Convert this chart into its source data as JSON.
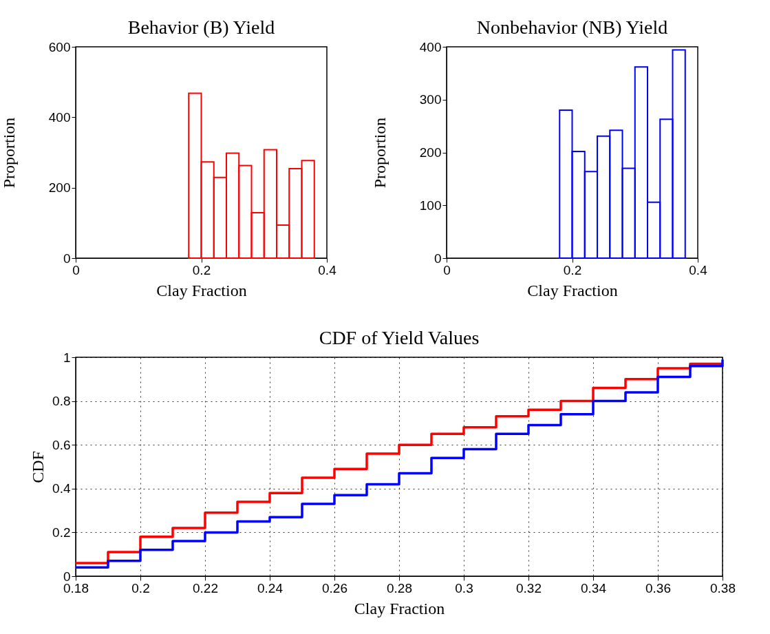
{
  "chart_data": [
    {
      "type": "histogram",
      "title": "Behavior (B) Yield",
      "xlabel": "Clay Fraction",
      "ylabel": "Proportion",
      "bins": [
        0.18,
        0.2,
        0.22,
        0.24,
        0.26,
        0.28,
        0.3,
        0.32,
        0.34,
        0.36,
        0.38
      ],
      "values": [
        468,
        273,
        229,
        298,
        263,
        129,
        308,
        94,
        254,
        277
      ],
      "color": "#ff0000",
      "xlim": [
        0,
        0.4
      ],
      "xticks": [
        0,
        0.2,
        0.4
      ],
      "ylim": [
        0,
        600
      ],
      "yticks": [
        0,
        200,
        400,
        600
      ],
      "grid": false
    },
    {
      "type": "histogram",
      "title": "Nonbehavior (NB) Yield",
      "xlabel": "Clay Fraction",
      "ylabel": "Proportion",
      "bins": [
        0.18,
        0.2,
        0.22,
        0.24,
        0.26,
        0.28,
        0.3,
        0.32,
        0.34,
        0.36,
        0.38
      ],
      "values": [
        280,
        202,
        164,
        231,
        242,
        170,
        362,
        106,
        263,
        394
      ],
      "color": "#0000ff",
      "xlim": [
        0,
        0.4
      ],
      "xticks": [
        0,
        0.2,
        0.4
      ],
      "ylim": [
        0,
        400
      ],
      "yticks": [
        0,
        100,
        200,
        300,
        400
      ],
      "grid": false
    },
    {
      "type": "step",
      "title": "CDF of Yield Values",
      "xlabel": "Clay Fraction",
      "ylabel": "CDF",
      "x": [
        0.18,
        0.19,
        0.2,
        0.21,
        0.22,
        0.23,
        0.24,
        0.25,
        0.26,
        0.27,
        0.28,
        0.29,
        0.3,
        0.31,
        0.32,
        0.33,
        0.34,
        0.35,
        0.36,
        0.37,
        0.38
      ],
      "series": [
        {
          "color": "#ff0000",
          "values": [
            0.06,
            0.11,
            0.18,
            0.22,
            0.29,
            0.34,
            0.38,
            0.45,
            0.49,
            0.56,
            0.6,
            0.65,
            0.68,
            0.73,
            0.76,
            0.8,
            0.86,
            0.9,
            0.95,
            0.97,
            0.97
          ]
        },
        {
          "color": "#0000ff",
          "values": [
            0.04,
            0.07,
            0.12,
            0.16,
            0.2,
            0.25,
            0.27,
            0.33,
            0.37,
            0.42,
            0.47,
            0.54,
            0.58,
            0.65,
            0.69,
            0.74,
            0.8,
            0.84,
            0.91,
            0.96,
            0.99
          ]
        }
      ],
      "xlim": [
        0.18,
        0.38
      ],
      "xticks": [
        0.18,
        0.2,
        0.22,
        0.24,
        0.26,
        0.28,
        0.3,
        0.32,
        0.34,
        0.36,
        0.38
      ],
      "ylim": [
        0,
        1
      ],
      "yticks": [
        0,
        0.2,
        0.4,
        0.6,
        0.8,
        1
      ],
      "grid": true
    }
  ]
}
